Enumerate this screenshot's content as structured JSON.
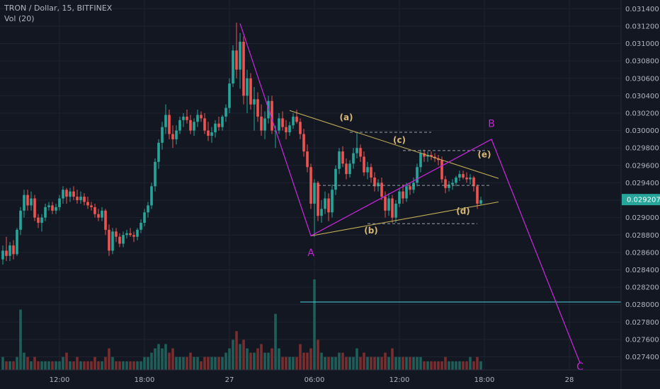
{
  "legend": {
    "title": "TRON / Dollar, 15, BITFINEX",
    "volume_label": "Vol (20)"
  },
  "price_badge": "0.029207",
  "colors": {
    "background": "#131722",
    "grid": "#1f2330",
    "up": "#26a69a",
    "down": "#ef5350",
    "vol_up": "#1f5f5a",
    "vol_down": "#7a2d2e",
    "elliott": "#c026d3",
    "trendline": "#c9b458",
    "dashed": "#9aa0a6",
    "hline": "#4dd0e1",
    "price_badge": "#26a69a"
  },
  "chart_data": {
    "type": "candlestick",
    "title": "TRON / Dollar, 15, BITFINEX",
    "ylim": [
      0.02725,
      0.0315
    ],
    "y_ticks": [
      "0.031400",
      "0.031200",
      "0.031000",
      "0.030800",
      "0.030600",
      "0.030400",
      "0.030200",
      "0.030000",
      "0.029800",
      "0.029600",
      "0.029400",
      "0.029200",
      "0.029000",
      "0.028800",
      "0.028600",
      "0.028400",
      "0.028200",
      "0.028000",
      "0.027800",
      "0.027600",
      "0.027400"
    ],
    "x_ticks": [
      {
        "label": "12:00",
        "bar": 16
      },
      {
        "label": "18:00",
        "bar": 40
      },
      {
        "label": "27",
        "bar": 64
      },
      {
        "label": "06:00",
        "bar": 88
      },
      {
        "label": "12:00",
        "bar": 112
      },
      {
        "label": "18:00",
        "bar": 136
      },
      {
        "label": "28",
        "bar": 160
      }
    ],
    "last_price": 0.029207,
    "candles": [
      [
        0.02852,
        0.02868,
        0.02846,
        0.02862,
        3
      ],
      [
        0.02862,
        0.02878,
        0.0285,
        0.02856,
        2
      ],
      [
        0.02856,
        0.02872,
        0.0285,
        0.02868,
        2
      ],
      [
        0.02868,
        0.02874,
        0.02852,
        0.02858,
        2
      ],
      [
        0.02858,
        0.02888,
        0.02856,
        0.02886,
        3
      ],
      [
        0.02886,
        0.02912,
        0.0288,
        0.02908,
        14
      ],
      [
        0.02908,
        0.02932,
        0.029,
        0.02926,
        4
      ],
      [
        0.02926,
        0.02932,
        0.02908,
        0.02914,
        3
      ],
      [
        0.02914,
        0.0293,
        0.02908,
        0.02922,
        2
      ],
      [
        0.02922,
        0.02926,
        0.02896,
        0.029,
        3
      ],
      [
        0.029,
        0.02904,
        0.02888,
        0.02894,
        2
      ],
      [
        0.02894,
        0.02904,
        0.02884,
        0.029,
        2
      ],
      [
        0.029,
        0.02916,
        0.02896,
        0.02912,
        2
      ],
      [
        0.02912,
        0.02918,
        0.02908,
        0.02914,
        2
      ],
      [
        0.02914,
        0.02918,
        0.02904,
        0.02908,
        2
      ],
      [
        0.02908,
        0.02916,
        0.02904,
        0.02912,
        2
      ],
      [
        0.02912,
        0.02926,
        0.02908,
        0.02922,
        2
      ],
      [
        0.02922,
        0.02936,
        0.02916,
        0.02932,
        3
      ],
      [
        0.02932,
        0.02934,
        0.02916,
        0.02924,
        4
      ],
      [
        0.02924,
        0.02934,
        0.02918,
        0.0293,
        2
      ],
      [
        0.0293,
        0.02936,
        0.0292,
        0.02924,
        2
      ],
      [
        0.02924,
        0.02932,
        0.02916,
        0.0292,
        3
      ],
      [
        0.0292,
        0.0293,
        0.02916,
        0.02924,
        2
      ],
      [
        0.02924,
        0.02928,
        0.02914,
        0.02918,
        2
      ],
      [
        0.02918,
        0.02924,
        0.0291,
        0.02914,
        2
      ],
      [
        0.02914,
        0.02918,
        0.02908,
        0.02912,
        2
      ],
      [
        0.02912,
        0.02916,
        0.029,
        0.02904,
        3
      ],
      [
        0.02904,
        0.0291,
        0.02896,
        0.029,
        2
      ],
      [
        0.029,
        0.02912,
        0.02896,
        0.02908,
        2
      ],
      [
        0.02908,
        0.0291,
        0.0288,
        0.02886,
        3
      ],
      [
        0.02886,
        0.02892,
        0.02856,
        0.02862,
        5
      ],
      [
        0.02862,
        0.02888,
        0.02858,
        0.02884,
        3
      ],
      [
        0.02884,
        0.02888,
        0.02872,
        0.02878,
        2
      ],
      [
        0.02878,
        0.02882,
        0.02866,
        0.0287,
        2
      ],
      [
        0.0287,
        0.02884,
        0.02866,
        0.0288,
        2
      ],
      [
        0.0288,
        0.02886,
        0.02876,
        0.02882,
        2
      ],
      [
        0.02882,
        0.02888,
        0.02878,
        0.0288,
        2
      ],
      [
        0.0288,
        0.02884,
        0.02872,
        0.02878,
        2
      ],
      [
        0.02878,
        0.02888,
        0.02874,
        0.02886,
        2
      ],
      [
        0.02886,
        0.02898,
        0.02882,
        0.02894,
        2
      ],
      [
        0.02894,
        0.0291,
        0.0289,
        0.02906,
        3
      ],
      [
        0.02906,
        0.02918,
        0.029,
        0.02914,
        3
      ],
      [
        0.02914,
        0.0294,
        0.0291,
        0.02936,
        4
      ],
      [
        0.02936,
        0.02968,
        0.0293,
        0.02964,
        5
      ],
      [
        0.02964,
        0.0299,
        0.02956,
        0.02986,
        6
      ],
      [
        0.02986,
        0.0301,
        0.02978,
        0.03004,
        5
      ],
      [
        0.03004,
        0.0303,
        0.02996,
        0.03018,
        6
      ],
      [
        0.03018,
        0.03024,
        0.0299,
        0.02996,
        4
      ],
      [
        0.02996,
        0.03006,
        0.0298,
        0.0299,
        5
      ],
      [
        0.0299,
        0.03006,
        0.02984,
        0.03,
        3
      ],
      [
        0.03,
        0.03016,
        0.02996,
        0.03012,
        3
      ],
      [
        0.03012,
        0.0302,
        0.03004,
        0.03016,
        3
      ],
      [
        0.03016,
        0.03024,
        0.03008,
        0.03012,
        3
      ],
      [
        0.03012,
        0.03018,
        0.02996,
        0.03,
        4
      ],
      [
        0.03,
        0.03014,
        0.02994,
        0.0301,
        3
      ],
      [
        0.0301,
        0.03024,
        0.03004,
        0.03018,
        3
      ],
      [
        0.03018,
        0.03022,
        0.0301,
        0.03014,
        2
      ],
      [
        0.03014,
        0.0302,
        0.02996,
        0.03,
        3
      ],
      [
        0.03,
        0.0301,
        0.02988,
        0.02994,
        3
      ],
      [
        0.02994,
        0.03004,
        0.02986,
        0.02998,
        3
      ],
      [
        0.02998,
        0.03012,
        0.02992,
        0.03008,
        3
      ],
      [
        0.03008,
        0.03016,
        0.03,
        0.03004,
        3
      ],
      [
        0.03004,
        0.03018,
        0.03,
        0.03016,
        3
      ],
      [
        0.03016,
        0.0303,
        0.0301,
        0.03026,
        4
      ],
      [
        0.03026,
        0.0306,
        0.0302,
        0.03054,
        5
      ],
      [
        0.03054,
        0.03098,
        0.0305,
        0.03092,
        7
      ],
      [
        0.03092,
        0.03124,
        0.0306,
        0.0307,
        9
      ],
      [
        0.0307,
        0.03112,
        0.03048,
        0.03102,
        6
      ],
      [
        0.03102,
        0.03108,
        0.0303,
        0.0304,
        7
      ],
      [
        0.0304,
        0.0307,
        0.0302,
        0.0306,
        5
      ],
      [
        0.0306,
        0.03066,
        0.03024,
        0.0303,
        4
      ],
      [
        0.0303,
        0.0305,
        0.03,
        0.03036,
        4
      ],
      [
        0.03036,
        0.03044,
        0.0301,
        0.03016,
        5
      ],
      [
        0.03016,
        0.0303,
        0.02994,
        0.03,
        6
      ],
      [
        0.03,
        0.03022,
        0.0299,
        0.03014,
        4
      ],
      [
        0.03014,
        0.0304,
        0.03008,
        0.03034,
        4
      ],
      [
        0.03034,
        0.0304,
        0.02996,
        0.03,
        5
      ],
      [
        0.03,
        0.03006,
        0.0298,
        0.03,
        13
      ],
      [
        0.03,
        0.0302,
        0.02996,
        0.03014,
        5
      ],
      [
        0.03014,
        0.03022,
        0.03,
        0.03004,
        3
      ],
      [
        0.03004,
        0.03012,
        0.0299,
        0.02998,
        3
      ],
      [
        0.02998,
        0.0301,
        0.02994,
        0.03006,
        3
      ],
      [
        0.03006,
        0.0302,
        0.03002,
        0.03016,
        3
      ],
      [
        0.03016,
        0.03024,
        0.03008,
        0.0301,
        3
      ],
      [
        0.0301,
        0.03014,
        0.0299,
        0.02996,
        6
      ],
      [
        0.02996,
        0.03002,
        0.0297,
        0.02976,
        4
      ],
      [
        0.02976,
        0.02984,
        0.02952,
        0.02958,
        4
      ],
      [
        0.02958,
        0.02962,
        0.0291,
        0.02916,
        5
      ],
      [
        0.02916,
        0.02944,
        0.02878,
        0.0294,
        21
      ],
      [
        0.0294,
        0.02942,
        0.02896,
        0.02902,
        7
      ],
      [
        0.02902,
        0.0292,
        0.02894,
        0.0291,
        4
      ],
      [
        0.0291,
        0.0293,
        0.02904,
        0.02922,
        3
      ],
      [
        0.02922,
        0.02928,
        0.02896,
        0.02906,
        3
      ],
      [
        0.02906,
        0.02938,
        0.029,
        0.02932,
        3
      ],
      [
        0.02932,
        0.0296,
        0.02926,
        0.02956,
        3
      ],
      [
        0.02956,
        0.0298,
        0.0295,
        0.02976,
        4
      ],
      [
        0.02976,
        0.02982,
        0.02958,
        0.02962,
        4
      ],
      [
        0.02962,
        0.02968,
        0.02944,
        0.0295,
        3
      ],
      [
        0.0295,
        0.02966,
        0.02946,
        0.02962,
        3
      ],
      [
        0.02962,
        0.0298,
        0.02956,
        0.02974,
        3
      ],
      [
        0.02974,
        0.02998,
        0.02968,
        0.0298,
        5
      ],
      [
        0.0298,
        0.02984,
        0.02964,
        0.0297,
        3
      ],
      [
        0.0297,
        0.02976,
        0.02948,
        0.02952,
        4
      ],
      [
        0.02952,
        0.02964,
        0.02944,
        0.02958,
        3
      ],
      [
        0.02958,
        0.02962,
        0.0294,
        0.02946,
        3
      ],
      [
        0.02946,
        0.02952,
        0.0293,
        0.02936,
        3
      ],
      [
        0.02936,
        0.02944,
        0.0293,
        0.0294,
        3
      ],
      [
        0.0294,
        0.02946,
        0.0292,
        0.02924,
        3
      ],
      [
        0.02924,
        0.0293,
        0.029,
        0.02908,
        4
      ],
      [
        0.02908,
        0.02928,
        0.02902,
        0.02922,
        3
      ],
      [
        0.02922,
        0.02926,
        0.02894,
        0.029,
        5
      ],
      [
        0.029,
        0.0292,
        0.02894,
        0.02916,
        3
      ],
      [
        0.02916,
        0.02934,
        0.02912,
        0.0293,
        3
      ],
      [
        0.0293,
        0.02938,
        0.02916,
        0.02922,
        3
      ],
      [
        0.02922,
        0.0294,
        0.02918,
        0.02936,
        3
      ],
      [
        0.02936,
        0.0294,
        0.02926,
        0.02932,
        3
      ],
      [
        0.02932,
        0.02946,
        0.02928,
        0.0294,
        3
      ],
      [
        0.0294,
        0.02962,
        0.02936,
        0.02958,
        3
      ],
      [
        0.02958,
        0.02978,
        0.02952,
        0.02974,
        3
      ],
      [
        0.02974,
        0.02978,
        0.02964,
        0.0297,
        2
      ],
      [
        0.0297,
        0.02976,
        0.02964,
        0.02972,
        2
      ],
      [
        0.02972,
        0.02976,
        0.02966,
        0.0297,
        2
      ],
      [
        0.0297,
        0.02974,
        0.02964,
        0.02968,
        2
      ],
      [
        0.02968,
        0.02972,
        0.0296,
        0.02966,
        2
      ],
      [
        0.02966,
        0.0297,
        0.0294,
        0.02944,
        2
      ],
      [
        0.02944,
        0.02948,
        0.02928,
        0.02934,
        3
      ],
      [
        0.02934,
        0.02942,
        0.0293,
        0.02938,
        2
      ],
      [
        0.02938,
        0.02944,
        0.02932,
        0.0294,
        2
      ],
      [
        0.0294,
        0.02948,
        0.02936,
        0.02946,
        2
      ],
      [
        0.02946,
        0.02954,
        0.02942,
        0.0295,
        2
      ],
      [
        0.0295,
        0.02954,
        0.02944,
        0.02946,
        2
      ],
      [
        0.02946,
        0.02952,
        0.0294,
        0.02944,
        2
      ],
      [
        0.02944,
        0.0295,
        0.02938,
        0.02946,
        3
      ],
      [
        0.02946,
        0.02948,
        0.0293,
        0.02936,
        2
      ],
      [
        0.02936,
        0.02938,
        0.0291,
        0.02916,
        3
      ],
      [
        0.02916,
        0.02924,
        0.02914,
        0.0292,
        2
      ]
    ],
    "elliott_wave": {
      "points": [
        {
          "bar": 67,
          "price": 0.03123
        },
        {
          "bar": 87,
          "price": 0.02879
        },
        {
          "bar": 138,
          "price": 0.0299
        },
        {
          "bar": 163,
          "price": 0.02733
        }
      ],
      "labels": [
        {
          "text": "A",
          "bar": 87,
          "price": 0.02856
        },
        {
          "text": "B",
          "bar": 138,
          "price": 0.03004
        },
        {
          "text": "C",
          "bar": 163,
          "price": 0.02725
        }
      ]
    },
    "triangle": {
      "upper": {
        "from": {
          "bar": 81,
          "price": 0.03023
        },
        "to": {
          "bar": 140,
          "price": 0.02945
        }
      },
      "lower": {
        "from": {
          "bar": 87,
          "price": 0.02879
        },
        "to": {
          "bar": 140,
          "price": 0.02918
        }
      },
      "labels": [
        {
          "text": "(a)",
          "bar": 97,
          "price": 0.03012
        },
        {
          "text": "(b)",
          "bar": 104,
          "price": 0.02882
        },
        {
          "text": "(c)",
          "bar": 112,
          "price": 0.02986
        },
        {
          "text": "(d)",
          "bar": 130,
          "price": 0.02904
        },
        {
          "text": "(e)",
          "bar": 136,
          "price": 0.02969
        }
      ]
    },
    "dashed_levels": [
      {
        "price": 0.02998,
        "from_bar": 98,
        "to_bar": 121
      },
      {
        "price": 0.02977,
        "from_bar": 113,
        "to_bar": 137
      },
      {
        "price": 0.02937,
        "from_bar": 89,
        "to_bar": 138
      },
      {
        "price": 0.02893,
        "from_bar": 103,
        "to_bar": 134
      }
    ],
    "horizontal_line": {
      "price": 0.02803,
      "from_bar": 84
    }
  }
}
